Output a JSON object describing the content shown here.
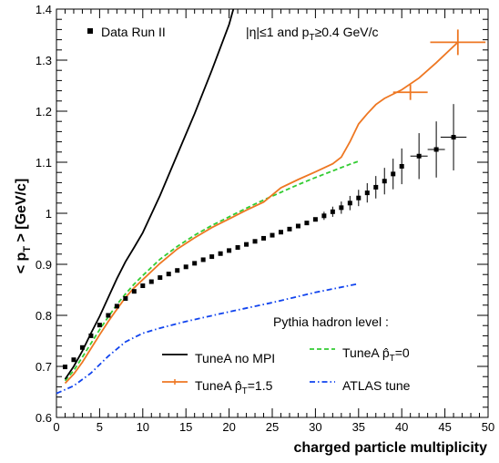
{
  "chart_data": {
    "type": "line",
    "xlabel": "charged particle multiplicity",
    "ylabel_main": "< p",
    "ylabel_sub": "T",
    "ylabel_tail": " >  [GeV/c]",
    "xlim": [
      0,
      50
    ],
    "ylim": [
      0.6,
      1.4
    ],
    "x_ticks": [
      0,
      5,
      10,
      15,
      20,
      25,
      30,
      35,
      40,
      45,
      50
    ],
    "y_ticks": [
      0.6,
      0.7,
      0.8,
      0.9,
      1.0,
      1.1,
      1.2,
      1.3,
      1.4
    ],
    "y_tick_labels": [
      "0.6",
      "0.7",
      "0.8",
      "0.9",
      "1",
      "1.1",
      "1.2",
      "1.3",
      "1.4"
    ],
    "grid": false,
    "annotations": {
      "data_label": "Data Run II",
      "cuts": {
        "prefix": "|η|≤1 and p",
        "sub": "T",
        "suffix": "≥0.4 GeV/c"
      },
      "level": "Pythia hadron level :"
    },
    "legend": [
      {
        "key": "tunea_nompi",
        "pre": "TuneA no MPI",
        "sub": "",
        "post": ""
      },
      {
        "key": "tunea_pt0",
        "pre": "TuneA p̂",
        "sub": "T",
        "post": "=0"
      },
      {
        "key": "tunea_pt15",
        "pre": "TuneA p̂",
        "sub": "T",
        "post": "=1.5"
      },
      {
        "key": "atlas",
        "pre": "ATLAS tune",
        "sub": "",
        "post": ""
      }
    ],
    "series": [
      {
        "key": "data",
        "color": "#000000",
        "style": "markers",
        "x": [
          1,
          2,
          3,
          4,
          5,
          6,
          7,
          8,
          9,
          10,
          11,
          12,
          13,
          14,
          15,
          16,
          17,
          18,
          19,
          20,
          21,
          22,
          23,
          24,
          25,
          26,
          27,
          28,
          29,
          30,
          31,
          32,
          33,
          34,
          35,
          36,
          37,
          38,
          39,
          40,
          42,
          44,
          46
        ],
        "y": [
          0.699,
          0.713,
          0.737,
          0.76,
          0.781,
          0.8,
          0.818,
          0.833,
          0.847,
          0.858,
          0.866,
          0.874,
          0.881,
          0.888,
          0.895,
          0.902,
          0.909,
          0.915,
          0.921,
          0.927,
          0.933,
          0.939,
          0.945,
          0.951,
          0.957,
          0.963,
          0.969,
          0.975,
          0.981,
          0.988,
          0.995,
          1.003,
          1.011,
          1.02,
          1.03,
          1.04,
          1.051,
          1.063,
          1.077,
          1.092,
          1.112,
          1.125,
          1.149
        ],
        "xerr": [
          0,
          0,
          0,
          0,
          0,
          0,
          0,
          0,
          0,
          0,
          0,
          0,
          0,
          0,
          0,
          0,
          0,
          0,
          0,
          0,
          0,
          0,
          0,
          0,
          0,
          0,
          0,
          0,
          0,
          0,
          0,
          0,
          0,
          0,
          0,
          0,
          0,
          0,
          0,
          0,
          1,
          1,
          1.5
        ],
        "yerr": [
          0,
          0,
          0,
          0,
          0,
          0,
          0,
          0,
          0,
          0,
          0,
          0,
          0,
          0,
          0,
          0,
          0,
          0,
          0,
          0,
          0,
          0,
          0,
          0,
          0,
          0,
          0,
          0,
          0,
          0,
          0.008,
          0.01,
          0.012,
          0.014,
          0.016,
          0.019,
          0.022,
          0.026,
          0.03,
          0.035,
          0.045,
          0.055,
          0.065
        ]
      },
      {
        "key": "tunea_nompi",
        "color": "#000000",
        "style": "solid",
        "x": [
          1,
          2,
          3,
          4,
          5,
          6,
          7,
          8,
          9,
          10,
          12,
          14,
          16,
          18,
          20,
          20.5
        ],
        "y": [
          0.675,
          0.7,
          0.73,
          0.765,
          0.798,
          0.835,
          0.872,
          0.905,
          0.933,
          0.962,
          1.035,
          1.115,
          1.195,
          1.28,
          1.37,
          1.4
        ]
      },
      {
        "key": "tunea_pt0",
        "color": "#33cc33",
        "style": "dashed",
        "x": [
          1,
          2,
          3,
          4,
          5,
          6,
          7,
          8,
          9,
          10,
          12,
          14,
          16,
          18,
          20,
          22,
          24,
          26,
          28,
          30,
          32,
          34,
          35
        ],
        "y": [
          0.672,
          0.692,
          0.718,
          0.745,
          0.772,
          0.797,
          0.821,
          0.842,
          0.861,
          0.878,
          0.91,
          0.935,
          0.957,
          0.976,
          0.993,
          1.01,
          1.026,
          1.041,
          1.056,
          1.07,
          1.083,
          1.096,
          1.102
        ]
      },
      {
        "key": "tunea_pt15",
        "color": "#ee7722",
        "style": "solid",
        "x": [
          1,
          2,
          3,
          4,
          5,
          6,
          7,
          8,
          9,
          10,
          12,
          14,
          16,
          18,
          20,
          22,
          24,
          26,
          28,
          30,
          32,
          33,
          34,
          35,
          36,
          37,
          38,
          40,
          42,
          44,
          46.5
        ],
        "y": [
          0.667,
          0.685,
          0.708,
          0.735,
          0.762,
          0.788,
          0.812,
          0.835,
          0.854,
          0.87,
          0.902,
          0.93,
          0.952,
          0.972,
          0.989,
          1.006,
          1.022,
          1.05,
          1.066,
          1.081,
          1.097,
          1.11,
          1.14,
          1.175,
          1.195,
          1.213,
          1.225,
          1.242,
          1.265,
          1.295,
          1.335
        ],
        "error_points": [
          {
            "x": 41,
            "y": 1.237,
            "xerr": 2,
            "yerr": 0.015
          },
          {
            "x": 46.5,
            "y": 1.335,
            "xerr": 3.2,
            "yerr": 0.025
          }
        ]
      },
      {
        "key": "atlas",
        "color": "#1144ee",
        "style": "dashdot",
        "x": [
          0,
          2,
          4,
          6,
          8,
          10,
          12,
          15,
          20,
          25,
          30,
          35
        ],
        "y": [
          0.647,
          0.662,
          0.687,
          0.72,
          0.748,
          0.765,
          0.775,
          0.788,
          0.807,
          0.825,
          0.845,
          0.862
        ]
      }
    ]
  }
}
